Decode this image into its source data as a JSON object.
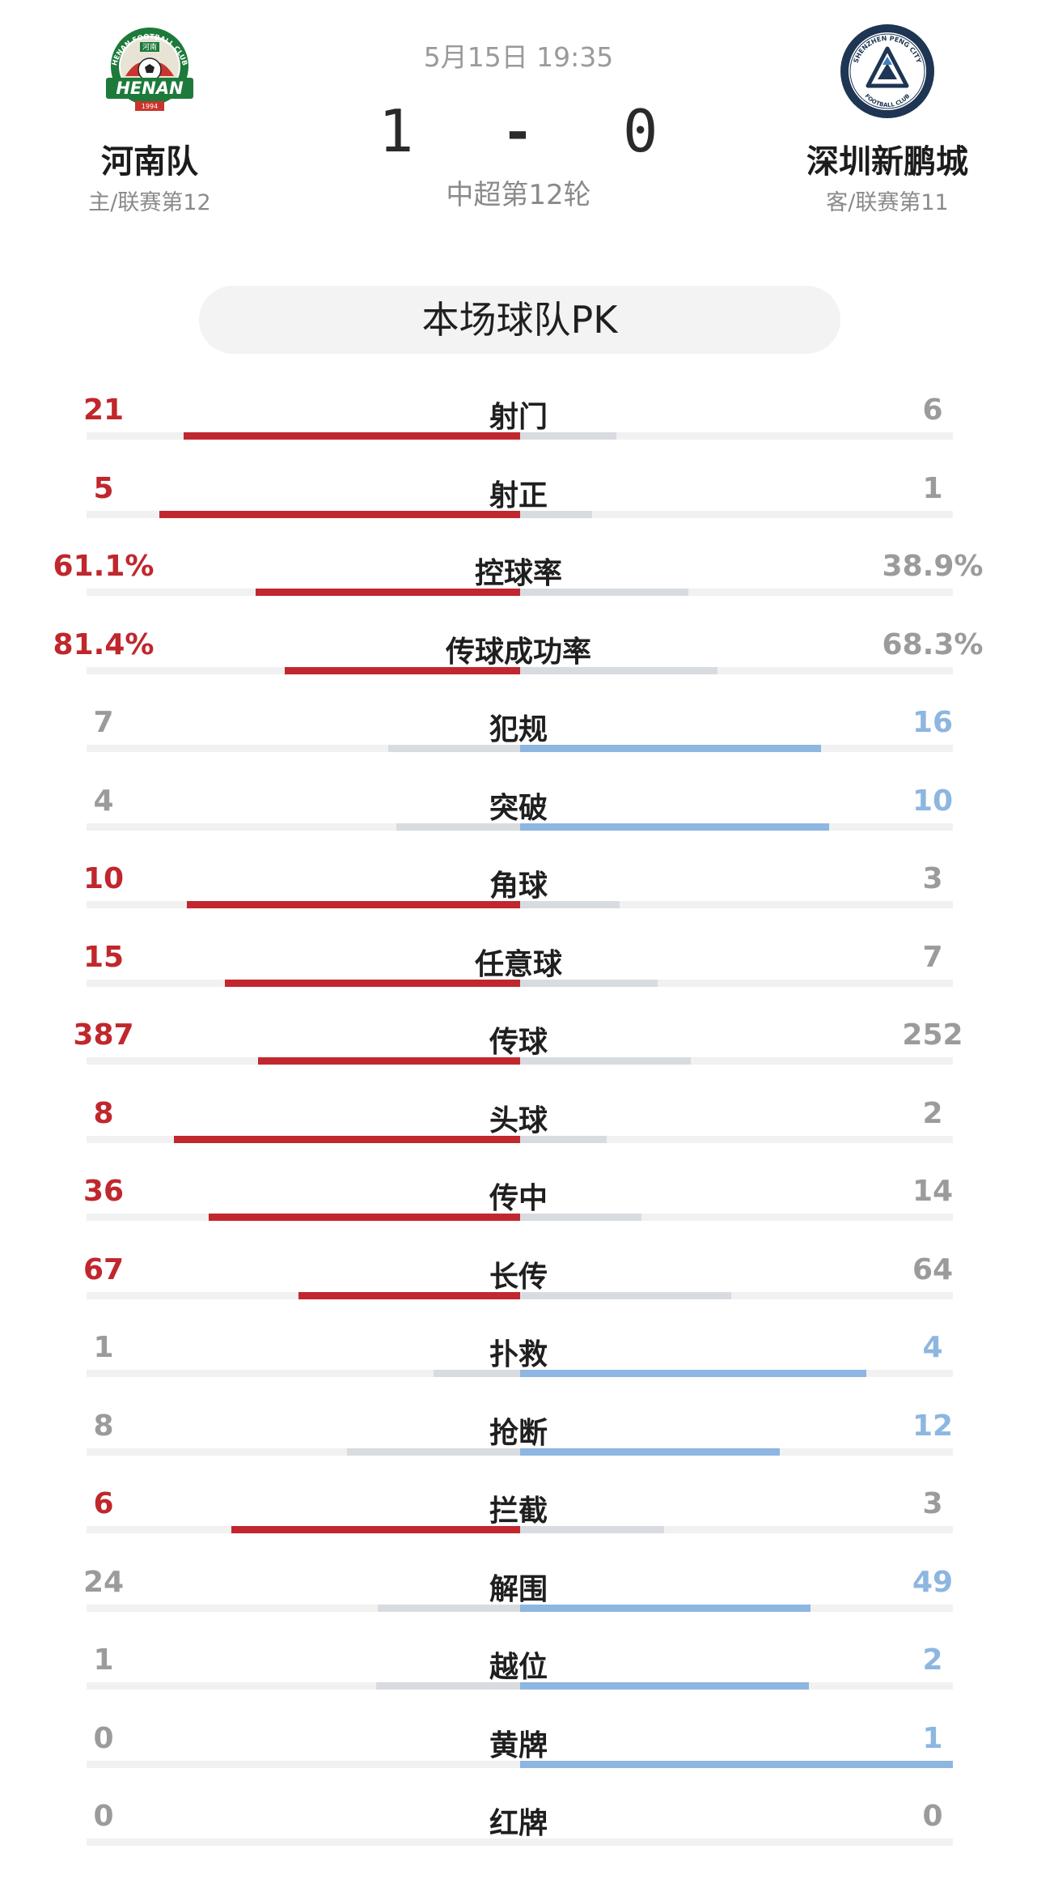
{
  "match": {
    "date_time": "5月15日 19:35",
    "home_score": "1",
    "separator": "-",
    "away_score": "0",
    "round": "中超第12轮"
  },
  "home": {
    "name": "河南队",
    "subtitle": "主/联赛第12",
    "logo_text": "HENAN",
    "logo_year": "1994",
    "logo_ring_text": "HENAN FOOTBALL CLUB",
    "logo_chinese": "河南",
    "color": "#c0272d"
  },
  "away": {
    "name": "深圳新鹏城",
    "subtitle": "客/联赛第11",
    "logo_ring_text": "SHENZHEN PENG CITY",
    "logo_ring_text_bottom": "FOOTBALL CLUB",
    "color": "#8db6e0"
  },
  "pk_title": "本场球队PK",
  "stats": [
    {
      "label": "射门",
      "home": "21",
      "away": "6",
      "home_val": 21,
      "away_val": 6
    },
    {
      "label": "射正",
      "home": "5",
      "away": "1",
      "home_val": 5,
      "away_val": 1
    },
    {
      "label": "控球率",
      "home": "61.1%",
      "away": "38.9%",
      "home_val": 61.1,
      "away_val": 38.9
    },
    {
      "label": "传球成功率",
      "home": "81.4%",
      "away": "68.3%",
      "home_val": 81.4,
      "away_val": 68.3
    },
    {
      "label": "犯规",
      "home": "7",
      "away": "16",
      "home_val": 7,
      "away_val": 16
    },
    {
      "label": "突破",
      "home": "4",
      "away": "10",
      "home_val": 4,
      "away_val": 10
    },
    {
      "label": "角球",
      "home": "10",
      "away": "3",
      "home_val": 10,
      "away_val": 3
    },
    {
      "label": "任意球",
      "home": "15",
      "away": "7",
      "home_val": 15,
      "away_val": 7
    },
    {
      "label": "传球",
      "home": "387",
      "away": "252",
      "home_val": 387,
      "away_val": 252
    },
    {
      "label": "头球",
      "home": "8",
      "away": "2",
      "home_val": 8,
      "away_val": 2
    },
    {
      "label": "传中",
      "home": "36",
      "away": "14",
      "home_val": 36,
      "away_val": 14
    },
    {
      "label": "长传",
      "home": "67",
      "away": "64",
      "home_val": 67,
      "away_val": 64
    },
    {
      "label": "扑救",
      "home": "1",
      "away": "4",
      "home_val": 1,
      "away_val": 4
    },
    {
      "label": "抢断",
      "home": "8",
      "away": "12",
      "home_val": 8,
      "away_val": 12
    },
    {
      "label": "拦截",
      "home": "6",
      "away": "3",
      "home_val": 6,
      "away_val": 3
    },
    {
      "label": "解围",
      "home": "24",
      "away": "49",
      "home_val": 24,
      "away_val": 49
    },
    {
      "label": "越位",
      "home": "1",
      "away": "2",
      "home_val": 1,
      "away_val": 2
    },
    {
      "label": "黄牌",
      "home": "0",
      "away": "1",
      "home_val": 0,
      "away_val": 1
    },
    {
      "label": "红牌",
      "home": "0",
      "away": "0",
      "home_val": 0,
      "away_val": 0
    }
  ]
}
